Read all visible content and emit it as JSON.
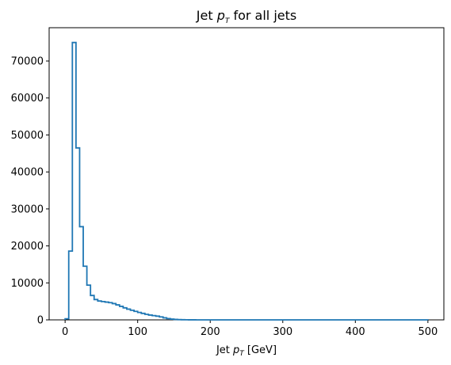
{
  "chart_data": {
    "type": "histogram",
    "title_parts": {
      "prefix": "Jet ",
      "var": "p",
      "sub": "T",
      "suffix": " for all jets"
    },
    "xlabel_parts": {
      "prefix": "Jet ",
      "var": "p",
      "sub": "T",
      "suffix": " [GeV]"
    },
    "ylabel": "",
    "xlim": [
      -22,
      522
    ],
    "ylim": [
      0,
      79000
    ],
    "xticks": [
      0,
      100,
      200,
      300,
      400,
      500
    ],
    "yticks": [
      0,
      10000,
      20000,
      30000,
      40000,
      50000,
      60000,
      70000
    ],
    "bin_width": 5,
    "bin_edges_start": 0,
    "series": [
      {
        "color": "#1f77b4",
        "values": [
          300,
          18600,
          75000,
          46500,
          25200,
          14500,
          9400,
          6600,
          5500,
          5100,
          4950,
          4800,
          4650,
          4400,
          4050,
          3650,
          3250,
          2900,
          2600,
          2300,
          2000,
          1750,
          1500,
          1300,
          1150,
          1000,
          800,
          550,
          350,
          200,
          120,
          70,
          40,
          25,
          15,
          10,
          8,
          6,
          5,
          4,
          3,
          3,
          2,
          2,
          2,
          2,
          1,
          1,
          1,
          1,
          1,
          1,
          1,
          1,
          1,
          1,
          1,
          1,
          1,
          1,
          1,
          1,
          1,
          1,
          1,
          1,
          1,
          1,
          1,
          1,
          1,
          1,
          1,
          1,
          1,
          1,
          1,
          1,
          1,
          1,
          1,
          1,
          1,
          1,
          1,
          1,
          1,
          1,
          1,
          1,
          1,
          1,
          1,
          1,
          1,
          1,
          1,
          1,
          1,
          1
        ]
      }
    ],
    "grid": false,
    "legend": "none"
  }
}
